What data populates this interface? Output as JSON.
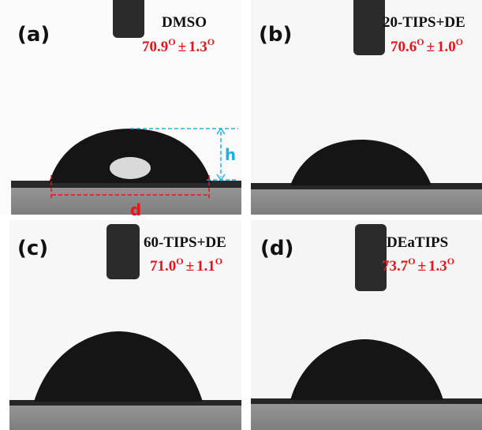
{
  "panels": [
    {
      "label": "(a)",
      "solvent": "DMSO",
      "angle": "70.9",
      "degree": "O",
      "pm": "±",
      "error": "1.3"
    },
    {
      "label": "(b)",
      "solvent": "20-TIPS+DE",
      "angle": "70.6",
      "degree": "O",
      "pm": "±",
      "error": "1.0"
    },
    {
      "label": "(c)",
      "solvent": "60-TIPS+DE",
      "angle": "71.0",
      "degree": "O",
      "pm": "±",
      "error": "1.1"
    },
    {
      "label": "(d)",
      "solvent": "DEaTIPS",
      "angle": "73.7",
      "degree": "O",
      "pm": "±",
      "error": "1.3"
    }
  ],
  "markers": {
    "height": "h",
    "diameter": "d"
  }
}
